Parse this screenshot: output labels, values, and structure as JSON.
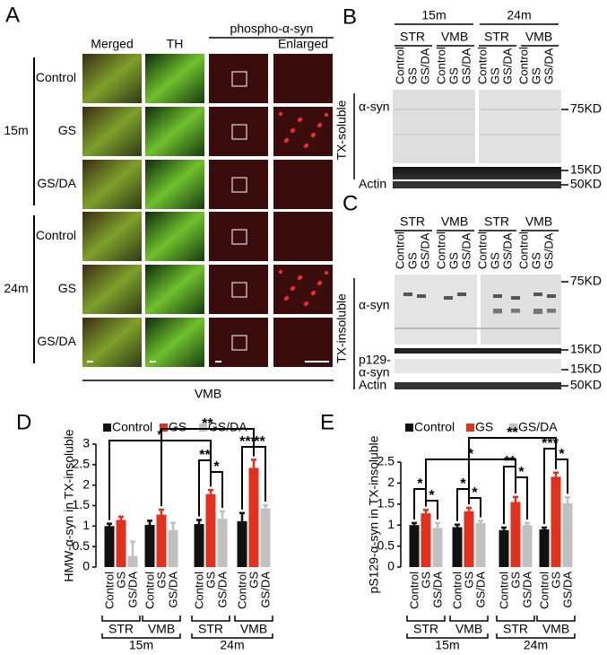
{
  "panel_a": {
    "label": "A",
    "columns": [
      "Merged",
      "TH",
      "phospho-α-syn",
      "Enlarged"
    ],
    "groups": [
      {
        "label": "15m",
        "rows": [
          "Control",
          "GS",
          "GS/DA"
        ]
      },
      {
        "label": "24m",
        "rows": [
          "Control",
          "GS",
          "GS/DA"
        ]
      }
    ],
    "region": "VMB"
  },
  "panel_b": {
    "label": "B",
    "ages": [
      "15m",
      "24m"
    ],
    "tissues": [
      "STR",
      "VMB",
      "STR",
      "VMB"
    ],
    "lanes": [
      "Control",
      "GS",
      "GS/DA"
    ],
    "fraction": "TX-soluble",
    "rows": [
      {
        "lines": [
          "α-syn"
        ]
      },
      {
        "lines": [
          "Actin"
        ]
      }
    ],
    "markers": [
      "75KD",
      "15KD",
      "50KD"
    ]
  },
  "panel_c": {
    "label": "C",
    "tissues": [
      "STR",
      "VMB",
      "STR",
      "VMB"
    ],
    "lanes": [
      "Control",
      "GS",
      "GS/DA"
    ],
    "fraction": "TX-insoluble",
    "rows": [
      {
        "lines": [
          "α-syn"
        ]
      },
      {
        "lines": [
          "p129-",
          "α-syn"
        ]
      },
      {
        "lines": [
          "Actin"
        ]
      }
    ],
    "markers": [
      "75KD",
      "15KD",
      "15KD",
      "50KD"
    ]
  },
  "chart_data": [
    {
      "type": "bar",
      "panel_label": "D",
      "ylabel": "HMW-α-syn in TX-insoluble",
      "categories": [
        "STR",
        "VMB",
        "STR",
        "VMB"
      ],
      "x_groups": [
        "15m",
        "24m"
      ],
      "series": [
        {
          "name": "Control",
          "color": "#111111",
          "values": [
            1.0,
            1.03,
            1.05,
            1.12
          ],
          "errors": [
            0.06,
            0.1,
            0.1,
            0.2
          ]
        },
        {
          "name": "GS",
          "color": "#e0301e",
          "values": [
            1.15,
            1.28,
            1.78,
            2.42
          ],
          "errors": [
            0.08,
            0.12,
            0.1,
            0.2
          ]
        },
        {
          "name": "GS/DA",
          "color": "#c0c0c0",
          "values": [
            0.27,
            0.9,
            1.18,
            1.43
          ],
          "errors": [
            0.35,
            0.18,
            0.18,
            0.08
          ]
        }
      ],
      "ylim": [
        0,
        3
      ],
      "yticks": [
        0,
        0.5,
        1,
        1.5,
        2,
        2.5,
        3
      ],
      "annotations": [
        {
          "text": "*"
        },
        {
          "text": "**"
        },
        {
          "text": "**"
        },
        {
          "text": "*"
        },
        {
          "text": "***"
        },
        {
          "text": "**"
        }
      ]
    },
    {
      "type": "bar",
      "panel_label": "E",
      "ylabel": "pS129-α-syn in TX-insoluble",
      "categories": [
        "STR",
        "VMB",
        "STR",
        "VMB"
      ],
      "x_groups": [
        "15m",
        "24m"
      ],
      "series": [
        {
          "name": "Control",
          "color": "#111111",
          "values": [
            1.0,
            0.95,
            0.88,
            0.9
          ],
          "errors": [
            0.05,
            0.06,
            0.06,
            0.04
          ]
        },
        {
          "name": "GS",
          "color": "#e0301e",
          "values": [
            1.28,
            1.33,
            1.55,
            2.15
          ],
          "errors": [
            0.08,
            0.08,
            0.12,
            0.1
          ]
        },
        {
          "name": "GS/DA",
          "color": "#c0c0c0",
          "values": [
            0.93,
            1.05,
            1.0,
            1.52
          ],
          "errors": [
            0.12,
            0.05,
            0.05,
            0.14
          ]
        }
      ],
      "ylim": [
        0,
        2.5
      ],
      "yticks": [
        0,
        0.5,
        1,
        1.5,
        2,
        2.5
      ],
      "annotations": [
        {
          "text": "*"
        },
        {
          "text": "*"
        },
        {
          "text": "*"
        },
        {
          "text": "*"
        },
        {
          "text": "**"
        },
        {
          "text": "*"
        },
        {
          "text": "***"
        },
        {
          "text": "*"
        },
        {
          "text": "*"
        },
        {
          "text": "**"
        }
      ]
    }
  ]
}
